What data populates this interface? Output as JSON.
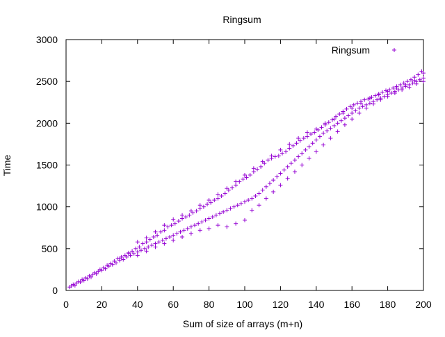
{
  "chart_data": {
    "type": "scatter",
    "title": "Ringsum",
    "xlabel": "Sum of size of arrays (m+n)",
    "ylabel": "Time",
    "xlim": [
      0,
      200
    ],
    "ylim": [
      0,
      3000
    ],
    "x_ticks": [
      "0",
      "20",
      "40",
      "60",
      "80",
      "100",
      "120",
      "140",
      "160",
      "180",
      "200"
    ],
    "y_ticks": [
      "0",
      "500",
      "1000",
      "1500",
      "2000",
      "2500",
      "3000"
    ],
    "grid": false,
    "legend_position": "top-right",
    "marker": "+",
    "series": [
      {
        "name": "Ringsum",
        "color": "#9400d3",
        "points": [
          [
            2,
            40
          ],
          [
            3,
            55
          ],
          [
            4,
            70
          ],
          [
            5,
            60
          ],
          [
            6,
            90
          ],
          [
            7,
            105
          ],
          [
            8,
            100
          ],
          [
            9,
            130
          ],
          [
            10,
            120
          ],
          [
            11,
            150
          ],
          [
            12,
            140
          ],
          [
            13,
            175
          ],
          [
            14,
            160
          ],
          [
            15,
            190
          ],
          [
            16,
            210
          ],
          [
            17,
            200
          ],
          [
            18,
            230
          ],
          [
            19,
            250
          ],
          [
            20,
            240
          ],
          [
            21,
            270
          ],
          [
            22,
            260
          ],
          [
            23,
            300
          ],
          [
            24,
            290
          ],
          [
            25,
            320
          ],
          [
            26,
            310
          ],
          [
            27,
            350
          ],
          [
            28,
            330
          ],
          [
            29,
            380
          ],
          [
            30,
            360
          ],
          [
            31,
            400
          ],
          [
            32,
            370
          ],
          [
            33,
            420
          ],
          [
            34,
            400
          ],
          [
            35,
            440
          ],
          [
            36,
            420
          ],
          [
            37,
            470
          ],
          [
            38,
            440
          ],
          [
            39,
            500
          ],
          [
            40,
            460
          ],
          [
            41,
            520
          ],
          [
            42,
            480
          ],
          [
            43,
            560
          ],
          [
            44,
            500
          ],
          [
            45,
            580
          ],
          [
            46,
            520
          ],
          [
            47,
            610
          ],
          [
            48,
            540
          ],
          [
            49,
            640
          ],
          [
            50,
            560
          ],
          [
            51,
            660
          ],
          [
            52,
            580
          ],
          [
            53,
            700
          ],
          [
            54,
            600
          ],
          [
            55,
            720
          ],
          [
            56,
            620
          ],
          [
            57,
            760
          ],
          [
            58,
            640
          ],
          [
            59,
            780
          ],
          [
            60,
            660
          ],
          [
            61,
            800
          ],
          [
            62,
            680
          ],
          [
            63,
            830
          ],
          [
            64,
            700
          ],
          [
            65,
            860
          ],
          [
            66,
            720
          ],
          [
            67,
            880
          ],
          [
            68,
            740
          ],
          [
            69,
            900
          ],
          [
            70,
            760
          ],
          [
            71,
            930
          ],
          [
            72,
            780
          ],
          [
            73,
            950
          ],
          [
            74,
            800
          ],
          [
            75,
            980
          ],
          [
            76,
            820
          ],
          [
            77,
            1000
          ],
          [
            78,
            840
          ],
          [
            79,
            1030
          ],
          [
            80,
            860
          ],
          [
            81,
            1050
          ],
          [
            82,
            880
          ],
          [
            83,
            1080
          ],
          [
            84,
            900
          ],
          [
            85,
            1100
          ],
          [
            86,
            920
          ],
          [
            87,
            1130
          ],
          [
            88,
            940
          ],
          [
            89,
            1160
          ],
          [
            90,
            960
          ],
          [
            91,
            1200
          ],
          [
            92,
            980
          ],
          [
            93,
            1230
          ],
          [
            94,
            1000
          ],
          [
            95,
            1260
          ],
          [
            96,
            1020
          ],
          [
            97,
            1300
          ],
          [
            98,
            1040
          ],
          [
            99,
            1330
          ],
          [
            100,
            1060
          ],
          [
            101,
            1350
          ],
          [
            102,
            1080
          ],
          [
            103,
            1380
          ],
          [
            104,
            1100
          ],
          [
            105,
            1420
          ],
          [
            106,
            1130
          ],
          [
            107,
            1450
          ],
          [
            108,
            1160
          ],
          [
            109,
            1480
          ],
          [
            110,
            1200
          ],
          [
            111,
            1520
          ],
          [
            112,
            1240
          ],
          [
            113,
            1560
          ],
          [
            114,
            1280
          ],
          [
            115,
            1580
          ],
          [
            116,
            1320
          ],
          [
            117,
            1600
          ],
          [
            118,
            1360
          ],
          [
            119,
            1610
          ],
          [
            120,
            1400
          ],
          [
            121,
            1640
          ],
          [
            122,
            1440
          ],
          [
            123,
            1660
          ],
          [
            124,
            1480
          ],
          [
            125,
            1700
          ],
          [
            126,
            1520
          ],
          [
            127,
            1730
          ],
          [
            128,
            1560
          ],
          [
            129,
            1760
          ],
          [
            130,
            1600
          ],
          [
            131,
            1790
          ],
          [
            132,
            1640
          ],
          [
            133,
            1820
          ],
          [
            134,
            1680
          ],
          [
            135,
            1840
          ],
          [
            136,
            1720
          ],
          [
            137,
            1870
          ],
          [
            138,
            1760
          ],
          [
            139,
            1890
          ],
          [
            140,
            1800
          ],
          [
            141,
            1920
          ],
          [
            142,
            1840
          ],
          [
            143,
            1950
          ],
          [
            144,
            1880
          ],
          [
            145,
            1980
          ],
          [
            146,
            1910
          ],
          [
            147,
            2010
          ],
          [
            148,
            1940
          ],
          [
            149,
            2040
          ],
          [
            150,
            1970
          ],
          [
            151,
            2080
          ],
          [
            152,
            2000
          ],
          [
            153,
            2110
          ],
          [
            154,
            2030
          ],
          [
            155,
            2140
          ],
          [
            156,
            2060
          ],
          [
            157,
            2170
          ],
          [
            158,
            2090
          ],
          [
            159,
            2200
          ],
          [
            160,
            2120
          ],
          [
            161,
            2220
          ],
          [
            162,
            2150
          ],
          [
            163,
            2240
          ],
          [
            164,
            2180
          ],
          [
            165,
            2260
          ],
          [
            166,
            2200
          ],
          [
            167,
            2280
          ],
          [
            168,
            2220
          ],
          [
            169,
            2290
          ],
          [
            170,
            2240
          ],
          [
            171,
            2310
          ],
          [
            172,
            2260
          ],
          [
            173,
            2330
          ],
          [
            174,
            2280
          ],
          [
            175,
            2350
          ],
          [
            176,
            2300
          ],
          [
            177,
            2370
          ],
          [
            178,
            2320
          ],
          [
            179,
            2390
          ],
          [
            180,
            2340
          ],
          [
            181,
            2400
          ],
          [
            182,
            2360
          ],
          [
            183,
            2420
          ],
          [
            184,
            2380
          ],
          [
            185,
            2440
          ],
          [
            186,
            2400
          ],
          [
            187,
            2460
          ],
          [
            188,
            2420
          ],
          [
            189,
            2480
          ],
          [
            190,
            2440
          ],
          [
            191,
            2500
          ],
          [
            192,
            2460
          ],
          [
            193,
            2520
          ],
          [
            194,
            2480
          ],
          [
            195,
            2550
          ],
          [
            196,
            2500
          ],
          [
            197,
            2580
          ],
          [
            198,
            2520
          ],
          [
            199,
            2620
          ],
          [
            200,
            2540
          ],
          [
            40,
            420
          ],
          [
            45,
            470
          ],
          [
            50,
            520
          ],
          [
            55,
            560
          ],
          [
            60,
            600
          ],
          [
            65,
            640
          ],
          [
            70,
            680
          ],
          [
            75,
            720
          ],
          [
            80,
            740
          ],
          [
            85,
            780
          ],
          [
            90,
            760
          ],
          [
            95,
            800
          ],
          [
            100,
            840
          ],
          [
            104,
            960
          ],
          [
            108,
            1020
          ],
          [
            112,
            1100
          ],
          [
            116,
            1180
          ],
          [
            120,
            1260
          ],
          [
            124,
            1340
          ],
          [
            128,
            1420
          ],
          [
            132,
            1500
          ],
          [
            136,
            1580
          ],
          [
            140,
            1660
          ],
          [
            144,
            1740
          ],
          [
            148,
            1820
          ],
          [
            152,
            1900
          ],
          [
            156,
            1980
          ],
          [
            160,
            2050
          ],
          [
            164,
            2120
          ],
          [
            168,
            2180
          ],
          [
            172,
            2230
          ],
          [
            176,
            2280
          ],
          [
            180,
            2320
          ],
          [
            184,
            2360
          ],
          [
            188,
            2400
          ],
          [
            192,
            2430
          ],
          [
            196,
            2470
          ],
          [
            200,
            2500
          ],
          [
            30,
            380
          ],
          [
            35,
            450
          ],
          [
            40,
            580
          ],
          [
            45,
            630
          ],
          [
            50,
            700
          ],
          [
            55,
            780
          ],
          [
            60,
            850
          ],
          [
            65,
            900
          ],
          [
            70,
            950
          ],
          [
            75,
            1020
          ],
          [
            80,
            1080
          ],
          [
            85,
            1150
          ],
          [
            90,
            1220
          ],
          [
            95,
            1300
          ],
          [
            100,
            1380
          ],
          [
            105,
            1460
          ],
          [
            110,
            1540
          ],
          [
            115,
            1610
          ],
          [
            120,
            1680
          ],
          [
            125,
            1750
          ],
          [
            130,
            1820
          ],
          [
            135,
            1890
          ],
          [
            140,
            1930
          ],
          [
            145,
            2000
          ],
          [
            150,
            2050
          ],
          [
            155,
            2120
          ],
          [
            160,
            2180
          ],
          [
            165,
            2240
          ],
          [
            170,
            2300
          ],
          [
            175,
            2340
          ],
          [
            180,
            2380
          ],
          [
            185,
            2420
          ],
          [
            190,
            2460
          ],
          [
            195,
            2510
          ],
          [
            200,
            2600
          ]
        ]
      }
    ]
  }
}
